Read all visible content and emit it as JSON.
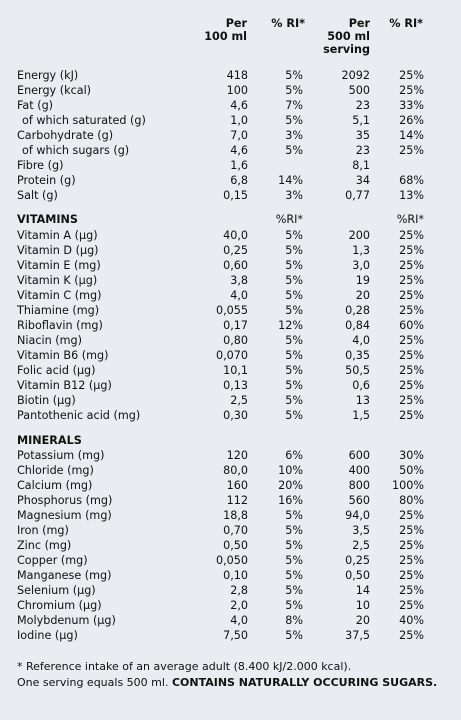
{
  "header": {
    "col1": "Per\n100 ml",
    "col2": "% RI*",
    "col3": "Per\n500 ml\nserving",
    "col4": "% RI*"
  },
  "nutrition": [
    {
      "label": "Energy (kJ)",
      "v1": "418",
      "v2": "5%",
      "v3": "2092",
      "v4": "25%"
    },
    {
      "label": "Energy (kcal)",
      "v1": "100",
      "v2": "5%",
      "v3": "500",
      "v4": "25%"
    },
    {
      "label": "Fat (g)",
      "v1": "4,6",
      "v2": "7%",
      "v3": "23",
      "v4": "33%"
    },
    {
      "label": "of which saturated (g)",
      "v1": "1,0",
      "v2": "5%",
      "v3": "5,1",
      "v4": "26%",
      "indent": true
    },
    {
      "label": "Carbohydrate  (g)",
      "v1": "7,0",
      "v2": "3%",
      "v3": "35",
      "v4": "14%"
    },
    {
      "label": "of which sugars (g)",
      "v1": "4,6",
      "v2": "5%",
      "v3": "23",
      "v4": "25%",
      "indent": true
    },
    {
      "label": "Fibre (g)",
      "v1": "1,6",
      "v2": "",
      "v3": "8,1",
      "v4": ""
    },
    {
      "label": "Protein (g)",
      "v1": "6,8",
      "v2": "14%",
      "v3": "34",
      "v4": "68%"
    },
    {
      "label": "Salt (g)",
      "v1": "0,15",
      "v2": "3%",
      "v3": "0,77",
      "v4": "13%"
    }
  ],
  "vitamins_title": "VITAMINS",
  "vitamins_ri1": "%RI*",
  "vitamins_ri2": "%RI*",
  "vitamins": [
    {
      "label": "Vitamin A (µg)",
      "v1": "40,0",
      "v2": "5%",
      "v3": "200",
      "v4": "25%"
    },
    {
      "label": "Vitamin D (µg)",
      "v1": "0,25",
      "v2": "5%",
      "v3": "1,3",
      "v4": "25%"
    },
    {
      "label": "Vitamin E (mg)",
      "v1": "0,60",
      "v2": "5%",
      "v3": "3,0",
      "v4": "25%"
    },
    {
      "label": "Vitamin K (µg)",
      "v1": "3,8",
      "v2": "5%",
      "v3": "19",
      "v4": "25%"
    },
    {
      "label": "Vitamin C (mg)",
      "v1": "4,0",
      "v2": "5%",
      "v3": "20",
      "v4": "25%"
    },
    {
      "label": "Thiamine (mg)",
      "v1": "0,055",
      "v2": "5%",
      "v3": "0,28",
      "v4": "25%"
    },
    {
      "label": "Riboflavin (mg)",
      "v1": "0,17",
      "v2": "12%",
      "v3": "0,84",
      "v4": "60%"
    },
    {
      "label": "Niacin (mg)",
      "v1": "0,80",
      "v2": "5%",
      "v3": "4,0",
      "v4": "25%"
    },
    {
      "label": "Vitamin B6 (mg)",
      "v1": "0,070",
      "v2": "5%",
      "v3": "0,35",
      "v4": "25%"
    },
    {
      "label": "Folic acid (µg)",
      "v1": "10,1",
      "v2": "5%",
      "v3": "50,5",
      "v4": "25%"
    },
    {
      "label": "Vitamin B12 (µg)",
      "v1": "0,13",
      "v2": "5%",
      "v3": "0,6",
      "v4": "25%"
    },
    {
      "label": "Biotin (µg)",
      "v1": "2,5",
      "v2": "5%",
      "v3": "13",
      "v4": "25%"
    },
    {
      "label": "Pantothenic acid (mg)",
      "v1": "0,30",
      "v2": "5%",
      "v3": "1,5",
      "v4": "25%"
    }
  ],
  "minerals_title": "MINERALS",
  "minerals": [
    {
      "label": "Potassium (mg)",
      "v1": "120",
      "v2": "6%",
      "v3": "600",
      "v4": "30%"
    },
    {
      "label": "Chloride (mg)",
      "v1": "80,0",
      "v2": "10%",
      "v3": "400",
      "v4": "50%"
    },
    {
      "label": "Calcium (mg)",
      "v1": "160",
      "v2": "20%",
      "v3": "800",
      "v4": "100%"
    },
    {
      "label": "Phosphorus (mg)",
      "v1": "112",
      "v2": "16%",
      "v3": "560",
      "v4": "80%"
    },
    {
      "label": "Magnesium (mg)",
      "v1": "18,8",
      "v2": "5%",
      "v3": "94,0",
      "v4": "25%"
    },
    {
      "label": "Iron (mg)",
      "v1": "0,70",
      "v2": "5%",
      "v3": "3,5",
      "v4": "25%"
    },
    {
      "label": "Zinc (mg)",
      "v1": "0,50",
      "v2": "5%",
      "v3": "2,5",
      "v4": "25%"
    },
    {
      "label": "Copper (mg)",
      "v1": "0,050",
      "v2": "5%",
      "v3": "0,25",
      "v4": "25%"
    },
    {
      "label": "Manganese (mg)",
      "v1": "0,10",
      "v2": "5%",
      "v3": "0,50",
      "v4": "25%"
    },
    {
      "label": "Selenium (µg)",
      "v1": "2,8",
      "v2": "5%",
      "v3": "14",
      "v4": "25%"
    },
    {
      "label": "Chromium (µg)",
      "v1": "2,0",
      "v2": "5%",
      "v3": "10",
      "v4": "25%"
    },
    {
      "label": "Molybdenum (µg)",
      "v1": "4,0",
      "v2": "8%",
      "v3": "20",
      "v4": "40%"
    },
    {
      "label": "Iodine (µg)",
      "v1": "7,50",
      "v2": "5%",
      "v3": "37,5",
      "v4": "25%"
    }
  ],
  "footer": {
    "line1": "* Reference intake of an average adult (8.400 kJ/2.000 kcal).",
    "line2_normal": "One serving equals 500 ml. ",
    "line2_bold": "CONTAINS NATURALLY OCCURING SUGARS."
  }
}
